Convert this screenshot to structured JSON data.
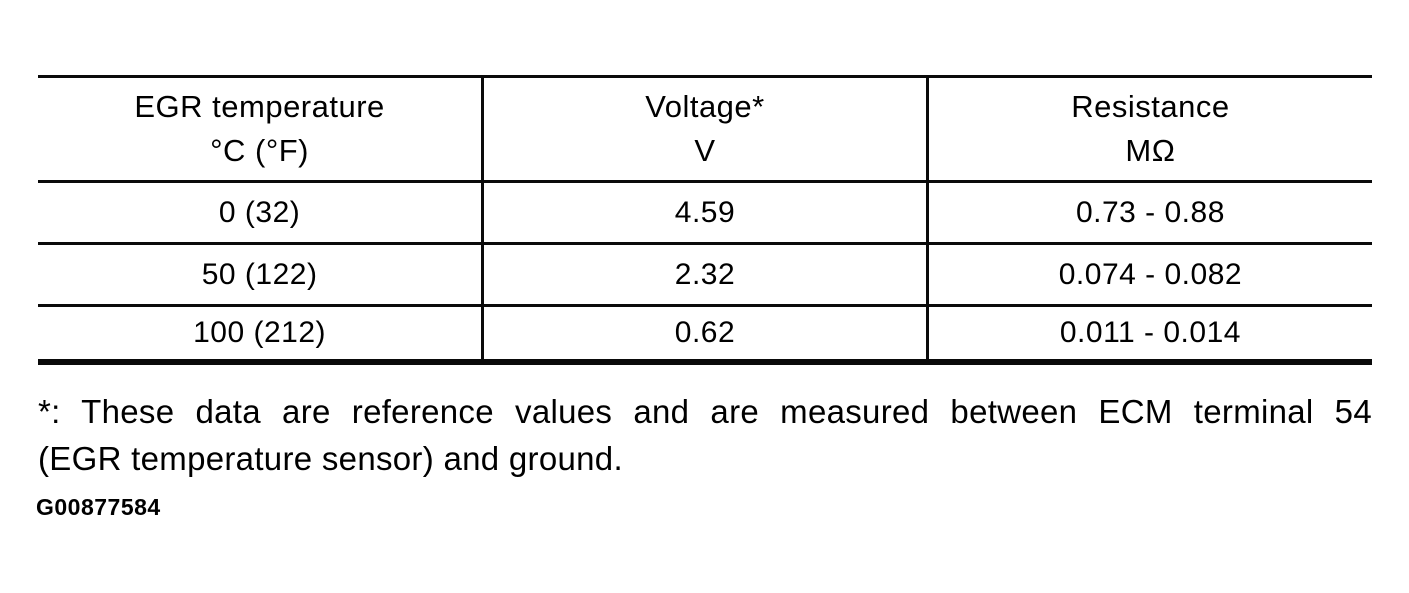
{
  "table": {
    "headers": [
      {
        "label": "EGR temperature",
        "unit": "°C (°F)"
      },
      {
        "label": "Voltage*",
        "unit": "V"
      },
      {
        "label": "Resistance",
        "unit": "MΩ"
      }
    ],
    "rows": [
      {
        "temperature": "0 (32)",
        "voltage": "4.59",
        "resistance": "0.73 - 0.88"
      },
      {
        "temperature": "50 (122)",
        "voltage": "2.32",
        "resistance": "0.074 - 0.082"
      },
      {
        "temperature": "100 (212)",
        "voltage": "0.62",
        "resistance": "0.011 - 0.014"
      }
    ]
  },
  "footnote": {
    "line1": "*: These data are reference values and are measured between ECM terminal 54",
    "line2": "(EGR temperature sensor) and ground."
  },
  "figure_id": "G00877584",
  "colors": {
    "ink": "#0a0a0a",
    "paper": "#ffffff"
  }
}
